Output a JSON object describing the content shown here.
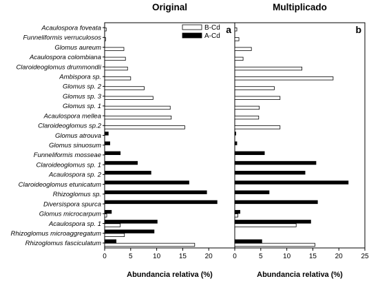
{
  "chart_data": [
    {
      "type": "bar",
      "orientation": "horizontal",
      "title": "Original",
      "panel_label": "a",
      "xlabel": "Abundancia relativa (%)",
      "xlim": [
        0,
        25
      ],
      "xticks": [
        0,
        5,
        10,
        15,
        20
      ],
      "categories": [
        "Acaulospora foveata",
        "Funneliformis verruculosos",
        "Glomus aureum",
        "Acaulospora colombiana",
        "Claroideoglomus drummondii",
        "Ambispora sp.",
        "Glomus sp. 2",
        "Glomus sp. 3",
        "Glomus sp. 1",
        "Acaulospora mellea",
        "Claroideoglomus sp.2",
        "Glomus atrouva",
        "Glomus sinuosum",
        "Funneliformis mosseae",
        "Claroideoglomus sp. 1",
        "Acaulospora sp. 2",
        "Claroideoglomus etunicatum",
        "Rhizoglomus sp.",
        "Diversispora spurca",
        "Glomus microcarpum",
        "Acaulospora sp. 1",
        "Rhizoglomus microaggregatum",
        "Rhizoglomus fasciculatum"
      ],
      "series": [
        {
          "name": "B-Cd",
          "color": "#ffffff",
          "values": [
            0.3,
            0.2,
            3.7,
            4.0,
            4.4,
            5.0,
            7.6,
            9.3,
            12.6,
            12.8,
            15.4,
            0,
            0,
            0,
            0,
            0,
            0,
            0,
            0,
            0.4,
            3.0,
            3.8,
            17.3
          ]
        },
        {
          "name": "A-Cd",
          "color": "#000000",
          "values": [
            0,
            0,
            0,
            0,
            0,
            0,
            0,
            0,
            0,
            0,
            0,
            0.7,
            1.0,
            3.0,
            6.3,
            8.9,
            16.2,
            19.6,
            21.6,
            1.3,
            10.1,
            9.5,
            2.2
          ]
        }
      ],
      "legend": {
        "position": "top-right",
        "entries": [
          "B-Cd",
          "A-Cd"
        ]
      },
      "grid": false
    },
    {
      "type": "bar",
      "orientation": "horizontal",
      "title": "Multiplicado",
      "panel_label": "b",
      "xlabel": "Abundancia relativa (%)",
      "xlim": [
        0,
        25
      ],
      "xticks": [
        0,
        5,
        10,
        15,
        20,
        25
      ],
      "categories": [
        "Acaulospora foveata",
        "Funneliformis verruculosos",
        "Glomus aureum",
        "Acaulospora colombiana",
        "Claroideoglomus drummondii",
        "Ambispora sp.",
        "Glomus sp. 2",
        "Glomus sp. 3",
        "Glomus sp. 1",
        "Acaulospora mellea",
        "Claroideoglomus sp.2",
        "Glomus atrouva",
        "Glomus sinuosum",
        "Funneliformis mosseae",
        "Claroideoglomus sp. 1",
        "Acaulospora sp. 2",
        "Claroideoglomus etunicatum",
        "Rhizoglomus sp.",
        "Diversispora spurca",
        "Glomus microcarpum",
        "Acaulospora sp. 1",
        "Rhizoglomus microaggregatum",
        "Rhizoglomus fasciculatum"
      ],
      "series": [
        {
          "name": "B-Cd",
          "color": "#ffffff",
          "values": [
            0.4,
            0.8,
            3.2,
            1.6,
            12.9,
            18.9,
            7.6,
            8.7,
            4.7,
            4.6,
            8.7,
            0,
            0,
            0,
            0,
            0,
            0,
            0,
            0,
            0.6,
            11.8,
            0,
            15.4
          ]
        },
        {
          "name": "A-Cd",
          "color": "#000000",
          "values": [
            0,
            0,
            0,
            0,
            0,
            0,
            0,
            0,
            0,
            0,
            0,
            0.2,
            0.4,
            5.7,
            15.6,
            13.5,
            21.8,
            6.6,
            15.9,
            1.0,
            14.6,
            0,
            5.2
          ]
        }
      ],
      "grid": false
    }
  ]
}
